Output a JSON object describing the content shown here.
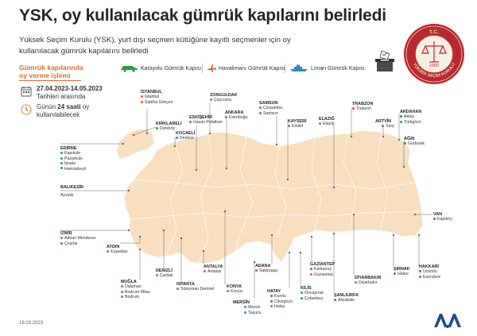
{
  "header": {
    "title": "YSK, oy kullanılacak gümrük kapılarını belirledi",
    "subtitle": "Yüksek Seçim Kurulu (YSK), yurt dışı seçmen kütüğüne kayıtlı seçmenler için oy kullanılacak gümrük kapılarını belirledi"
  },
  "seal": {
    "top_text": "T.C.",
    "year": "1950",
    "bottom_text": "YÜKSEK SEÇİM KURULU"
  },
  "legend": {
    "land": "Karayolu Gümrük Kapısı",
    "air": "Havalimanı Gümrük Kapısı",
    "sea": "Liman Gümrük Kapısı"
  },
  "voting_info": {
    "heading_line1": "Gümrük kapılarında",
    "heading_line2": "oy verme işlemi",
    "dates": "27.04.2023-14.05.2023",
    "dates_suffix": "Tarihleri arasında",
    "hours_pre": "Günün ",
    "hours_bold": "24 saati",
    "hours_post": " oy",
    "hours_line2": "kullanılabilecek"
  },
  "gates": {
    "istanbul": {
      "city": "İSTANBUL",
      "g1": "İstanbul",
      "g2": "Sabiha Gökçen"
    },
    "kirklareli": {
      "city": "KIRKLARELİ",
      "g1": "Dereköy"
    },
    "edirne": {
      "city": "EDİRNE",
      "g1": "Kapıkule",
      "g2": "Pazarkule",
      "g3": "İpsala",
      "g4": "Hamzabeyli"
    },
    "balikesir": {
      "city": "BALIKESİR",
      "g1": "Ayvalık"
    },
    "izmir": {
      "city": "İZMİR",
      "g1": "Adnan Menderes",
      "g2": "Çeşme"
    },
    "aydin": {
      "city": "AYDIN",
      "g1": "Kuşadası"
    },
    "mugla": {
      "city": "MUĞLA",
      "g1": "Dalaman",
      "g2": "Bodrum-Milas",
      "g3": "Bodrum"
    },
    "denizli": {
      "city": "DENİZLİ",
      "g1": "Çardak"
    },
    "isparta": {
      "city": "ISPARTA",
      "g1": "Süleyman Demirel"
    },
    "antalya": {
      "city": "ANTALYA",
      "g1": "Antalya"
    },
    "eskisehir": {
      "city": "ESKİŞEHİR",
      "g1": "Hasan Polatkan"
    },
    "kocaeli": {
      "city": "KOCAELİ",
      "g1": "Derince"
    },
    "zonguldak": {
      "city": "ZONGULDAK",
      "g1": "Çaycuma"
    },
    "ankara": {
      "city": "ANKARA",
      "g1": "Esenboğa"
    },
    "konya": {
      "city": "KONYA",
      "g1": "Konya"
    },
    "mersin": {
      "city": "MERSİN",
      "g1": "Mersin",
      "g2": "Taşucu"
    },
    "adana": {
      "city": "ADANA",
      "g1": "Sakirpaşa"
    },
    "hatay": {
      "city": "HATAY",
      "g1": "Kumlu",
      "g2": "Cilvegözü",
      "g3": "Hatay"
    },
    "kilis": {
      "city": "KİLİS",
      "g1": "Öncüpınar",
      "g2": "Çobanbey"
    },
    "gaziantep": {
      "city": "GAZİANTEP",
      "g1": "Karkamış",
      "g2": "Gaziantep"
    },
    "sanliurfa": {
      "city": "ŞANLIURFA",
      "g1": "Akçakale"
    },
    "diyarbakir": {
      "city": "DİYARBAKIR",
      "g1": "Diyarbakır"
    },
    "sirnak": {
      "city": "ŞIRNAK",
      "g1": "Habur"
    },
    "hakkari": {
      "city": "HAKKARİ",
      "g1": "Üzümlü",
      "g2": "Esendere"
    },
    "van": {
      "city": "VAN",
      "g1": "Kapıköy"
    },
    "samsun": {
      "city": "SAMSUN",
      "g1": "Çarşamba",
      "g2": "Samsun"
    },
    "kayseri": {
      "city": "KAYSERİ",
      "g1": "Erkilet"
    },
    "elazig": {
      "city": "ELAZIĞ",
      "g1": "Elazığ"
    },
    "trabzon": {
      "city": "TRABZON",
      "g1": "Trabzon"
    },
    "artvin": {
      "city": "ARTVİN",
      "g1": "Sarp"
    },
    "ardahan": {
      "city": "ARDAHAN",
      "g1": "Aktaş",
      "g2": "Türkgözü"
    },
    "agri": {
      "city": "AĞRI",
      "g1": "Gürbulak"
    }
  },
  "footer": {
    "date": "19.03.2023"
  },
  "colors": {
    "accent": "#e06b2c",
    "land": "#2e9a4e",
    "air": "#e2572b",
    "sea": "#2d8cc0",
    "map_fill": "#f7dfc0"
  }
}
